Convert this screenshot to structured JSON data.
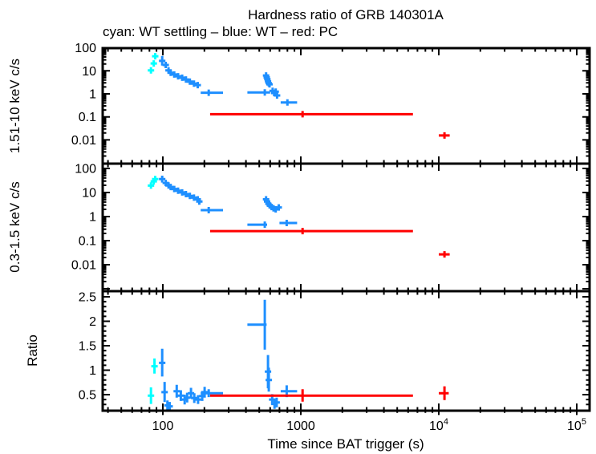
{
  "chart_data": {
    "type": "scatter",
    "title": "Hardness ratio of GRB 140301A",
    "subtitle": "cyan: WT settling – blue: WT – red: PC",
    "xlabel": "Time since BAT trigger (s)",
    "xscale": "log",
    "xlim": [
      36.6,
      122000
    ],
    "grid": false,
    "legend_position": "top-left-above-plot",
    "modes": [
      {
        "name": "WT settling",
        "color_key": "cyan"
      },
      {
        "name": "WT",
        "color_key": "blue"
      },
      {
        "name": "PC",
        "color_key": "red"
      }
    ],
    "colors": {
      "cyan": "#00ffff",
      "blue": "#1e8fff",
      "red": "#ff0000",
      "frame": "#000000",
      "background": "#ffffff"
    },
    "xticks": [
      {
        "v": 100,
        "label": "100"
      },
      {
        "v": 1000,
        "label": "1000"
      },
      {
        "v": 10000,
        "label": "10",
        "sup": "4"
      },
      {
        "v": 100000,
        "label": "10",
        "sup": "5"
      }
    ],
    "point_format": [
      "t_s",
      "value",
      "t_lo",
      "t_hi",
      "value_lo",
      "value_hi"
    ],
    "panels": [
      {
        "name": "hard",
        "ylabel": "1.51-10 keV c/s",
        "yscale": "log",
        "ylim": [
          0.001,
          97
        ],
        "yticks": [
          {
            "v": 100,
            "label": "100"
          },
          {
            "v": 10,
            "label": "10"
          },
          {
            "v": 1,
            "label": "1"
          },
          {
            "v": 0.1,
            "label": "0.1"
          },
          {
            "v": 0.01,
            "label": "0.01"
          }
        ],
        "series": {
          "cyan": [
            [
              82,
              10.5,
              80,
              84,
              8.6,
              12.8
            ],
            [
              86,
              21,
              84,
              88,
              17,
              26
            ],
            [
              88,
              43,
              86,
              91,
              35,
              53
            ]
          ],
          "blue": [
            [
              99,
              27,
              96,
              102,
              17,
              44
            ],
            [
              105,
              18,
              102,
              108,
              14.5,
              22.5
            ],
            [
              110,
              10.5,
              107,
              113,
              8.6,
              12.8
            ],
            [
              114,
              8.2,
              111,
              117,
              6.8,
              9.9
            ],
            [
              121,
              6.9,
              117,
              125,
              5.8,
              8.2
            ],
            [
              129,
              5.8,
              125,
              133,
              4.9,
              6.9
            ],
            [
              138,
              5.0,
              133,
              143,
              4.2,
              6.0
            ],
            [
              147,
              4.2,
              143,
              152,
              3.5,
              5.0
            ],
            [
              157,
              3.4,
              152,
              162,
              2.85,
              4.05
            ],
            [
              168,
              2.8,
              162,
              174,
              2.35,
              3.35
            ],
            [
              179,
              2.4,
              174,
              186,
              2.0,
              2.9
            ],
            [
              215,
              1.12,
              188,
              273,
              0.96,
              1.31
            ],
            [
              560,
              6.3,
              557,
              563,
              5.4,
              7.3
            ],
            [
              566,
              5.2,
              563,
              569,
              4.5,
              6.0
            ],
            [
              572,
              4.3,
              569,
              575,
              3.7,
              5.0
            ],
            [
              578,
              3.5,
              575,
              581,
              3.0,
              4.1
            ],
            [
              585,
              2.9,
              581,
              589,
              2.5,
              3.4
            ],
            [
              593,
              2.6,
              589,
              597,
              2.2,
              3.0
            ],
            [
              548,
              1.15,
              410,
              600,
              0.99,
              1.34
            ],
            [
              625,
              1.35,
              612,
              638,
              1.12,
              1.63
            ],
            [
              641,
              1.08,
              630,
              652,
              0.89,
              1.31
            ],
            [
              658,
              1.25,
              645,
              671,
              1.03,
              1.51
            ],
            [
              673,
              0.85,
              660,
              686,
              0.7,
              1.03
            ],
            [
              800,
              0.42,
              715,
              940,
              0.34,
              0.52
            ]
          ],
          "red": [
            [
              1030,
              0.13,
              220,
              6500,
              0.112,
              0.151
            ],
            [
              11000,
              0.0155,
              10000,
              12000,
              0.0125,
              0.0192
            ]
          ]
        }
      },
      {
        "name": "soft",
        "ylabel": "0.3-1.5 keV c/s",
        "yscale": "log",
        "ylim": [
          0.0008,
          158
        ],
        "yticks": [
          {
            "v": 100,
            "label": "100"
          },
          {
            "v": 10,
            "label": "10"
          },
          {
            "v": 1,
            "label": "1"
          },
          {
            "v": 0.1,
            "label": "0.1"
          },
          {
            "v": 0.01,
            "label": "0.01"
          }
        ],
        "series": {
          "cyan": [
            [
              82,
              19.4,
              80,
              84,
              16,
              23.5
            ],
            [
              86,
              29,
              84,
              88,
              24,
              35
            ],
            [
              88,
              36,
              86,
              91,
              30,
              43
            ]
          ],
          "blue": [
            [
              99,
              36,
              96,
              102,
              26,
              50
            ],
            [
              105,
              25,
              102,
              108,
              21,
              30
            ],
            [
              110,
              19.5,
              107,
              113,
              16.5,
              23
            ],
            [
              114,
              17,
              111,
              117,
              14.4,
              20
            ],
            [
              121,
              14,
              117,
              125,
              11.9,
              16.5
            ],
            [
              129,
              11.9,
              125,
              133,
              10.1,
              14
            ],
            [
              138,
              10.1,
              133,
              143,
              8.6,
              11.9
            ],
            [
              147,
              8.6,
              143,
              152,
              7.3,
              10.1
            ],
            [
              157,
              7.2,
              152,
              162,
              6.1,
              8.5
            ],
            [
              168,
              6.1,
              162,
              174,
              5.2,
              7.2
            ],
            [
              179,
              5.2,
              174,
              182,
              4.4,
              6.1
            ],
            [
              184,
              4.2,
              181,
              188,
              3.5,
              5.0
            ],
            [
              215,
              1.85,
              188,
              273,
              1.58,
              2.17
            ],
            [
              560,
              5.2,
              557,
              563,
              4.5,
              6.0
            ],
            [
              570,
              4.2,
              566,
              574,
              3.6,
              4.9
            ],
            [
              582,
              3.4,
              578,
              586,
              2.9,
              4.0
            ],
            [
              596,
              2.9,
              591,
              601,
              2.5,
              3.4
            ],
            [
              614,
              2.5,
              608,
              620,
              2.1,
              2.9
            ],
            [
              634,
              2.2,
              627,
              641,
              1.87,
              2.59
            ],
            [
              658,
              2.0,
              650,
              666,
              1.7,
              2.35
            ],
            [
              692,
              2.4,
              676,
              708,
              2.0,
              2.9
            ],
            [
              548,
              0.46,
              410,
              570,
              0.39,
              0.54
            ],
            [
              790,
              0.54,
              700,
              940,
              0.46,
              0.64
            ]
          ],
          "red": [
            [
              1030,
              0.25,
              220,
              6500,
              0.215,
              0.29
            ],
            [
              11000,
              0.027,
              10000,
              12000,
              0.021,
              0.035
            ]
          ]
        }
      },
      {
        "name": "ratio",
        "ylabel": "Ratio",
        "yscale": "linear",
        "ylim": [
          0.17,
          2.61
        ],
        "yticks": [
          {
            "v": 2.5,
            "label": "2.5"
          },
          {
            "v": 2,
            "label": "2"
          },
          {
            "v": 1.5,
            "label": "1.5"
          },
          {
            "v": 1,
            "label": "1"
          },
          {
            "v": 0.5,
            "label": "0.5"
          }
        ],
        "series": {
          "cyan": [
            [
              82,
              0.48,
              81,
              83,
              0.31,
              0.65
            ],
            [
              87,
              1.08,
              86,
              88,
              0.93,
              1.24
            ]
          ],
          "blue": [
            [
              99,
              1.15,
              97,
              101,
              0.87,
              1.44
            ],
            [
              103,
              0.55,
              101,
              105,
              0.35,
              0.76
            ],
            [
              108,
              0.28,
              106,
              110,
              0.19,
              0.38
            ],
            [
              112,
              0.26,
              110,
              114,
              0.18,
              0.35
            ],
            [
              126,
              0.57,
              121,
              131,
              0.44,
              0.7
            ],
            [
              135,
              0.48,
              130,
              140,
              0.37,
              0.59
            ],
            [
              144,
              0.4,
              139,
              149,
              0.3,
              0.5
            ],
            [
              150,
              0.44,
              145,
              155,
              0.34,
              0.54
            ],
            [
              160,
              0.53,
              154,
              166,
              0.42,
              0.64
            ],
            [
              169,
              0.43,
              163,
              175,
              0.33,
              0.53
            ],
            [
              180,
              0.4,
              174,
              186,
              0.31,
              0.49
            ],
            [
              193,
              0.47,
              187,
              199,
              0.37,
              0.57
            ],
            [
              201,
              0.55,
              195,
              207,
              0.44,
              0.66
            ],
            [
              215,
              0.53,
              188,
              273,
              0.45,
              0.61
            ],
            [
              548,
              1.93,
              410,
              565,
              1.42,
              2.44
            ],
            [
              578,
              0.97,
              574,
              582,
              0.63,
              1.31
            ],
            [
              586,
              0.8,
              582,
              590,
              0.56,
              1.05
            ],
            [
              620,
              0.4,
              612,
              628,
              0.29,
              0.51
            ],
            [
              645,
              0.31,
              636,
              654,
              0.21,
              0.41
            ],
            [
              668,
              0.34,
              658,
              678,
              0.24,
              0.44
            ],
            [
              790,
              0.57,
              715,
              940,
              0.45,
              0.69
            ]
          ],
          "red": [
            [
              1030,
              0.48,
              220,
              6500,
              0.355,
              0.61
            ],
            [
              11000,
              0.53,
              10000,
              11800,
              0.39,
              0.67
            ]
          ]
        }
      }
    ]
  }
}
